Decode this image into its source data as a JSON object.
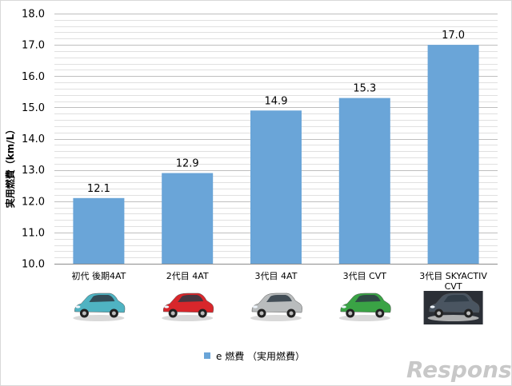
{
  "chart_data": {
    "type": "bar",
    "categories": [
      [
        "初代 後期4AT"
      ],
      [
        "2代目 4AT"
      ],
      [
        "3代目 4AT"
      ],
      [
        "3代目 CVT"
      ],
      [
        "3代目 SKYACTIV",
        "CVT"
      ]
    ],
    "series": [
      {
        "name": "e 燃費 （実用燃費）",
        "values": [
          12.1,
          12.9,
          14.9,
          15.3,
          17.0
        ],
        "color": "#6aa5d8"
      }
    ],
    "value_labels": [
      "12.1",
      "12.9",
      "14.9",
      "15.3",
      "17.0"
    ],
    "ylabel": "実用燃費（km/L）",
    "xlabel": "",
    "ylim": [
      10.0,
      18.0
    ],
    "yticks": [
      "10.0",
      "11.0",
      "12.0",
      "13.0",
      "14.0",
      "15.0",
      "16.0",
      "17.0",
      "18.0"
    ],
    "grid": true,
    "legend_position": "bottom"
  },
  "car_images": [
    {
      "color": "#4fb3c2",
      "style": "compact"
    },
    {
      "color": "#d8262b",
      "style": "compact"
    },
    {
      "color": "#b9bcbd",
      "style": "hatch"
    },
    {
      "color": "#3aa345",
      "style": "hatch"
    },
    {
      "color": "#4a5561",
      "style": "hatch-dark"
    }
  ],
  "watermark": "Response."
}
